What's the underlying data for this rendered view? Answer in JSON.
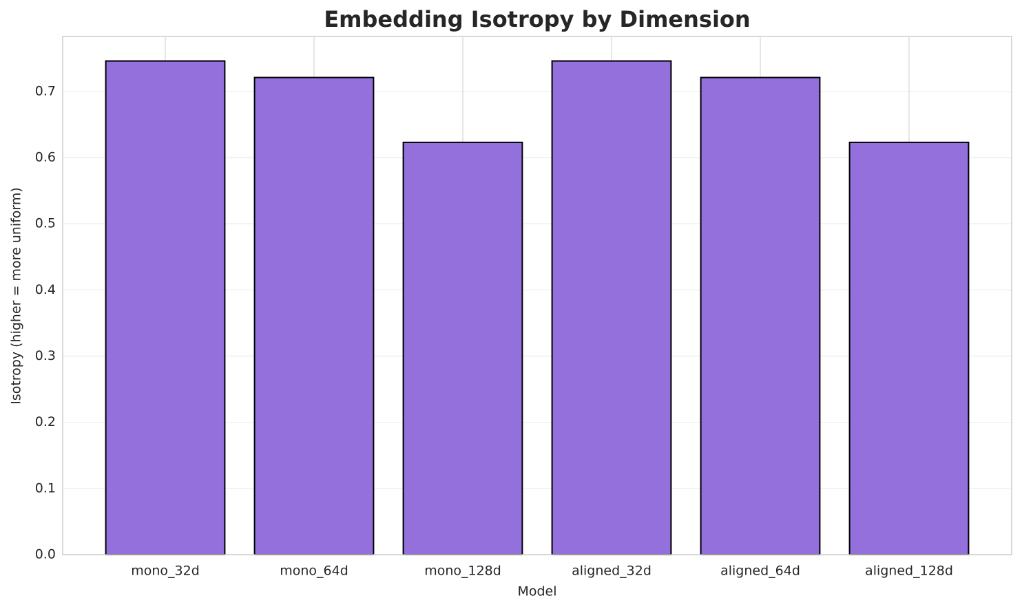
{
  "chart_data": {
    "type": "bar",
    "title": "Embedding Isotropy by Dimension",
    "xlabel": "Model",
    "ylabel": "Isotropy (higher = more uniform)",
    "categories": [
      "mono_32d",
      "mono_64d",
      "mono_128d",
      "aligned_32d",
      "aligned_64d",
      "aligned_128d"
    ],
    "values": [
      0.746,
      0.721,
      0.623,
      0.746,
      0.721,
      0.623
    ],
    "color": "#9370db",
    "edgecolor": "#000000",
    "ylim": [
      0,
      0.783
    ],
    "yticks": [
      {
        "value": 0,
        "label": "0.0"
      },
      0.1,
      0.2,
      0.3,
      0.4,
      0.5,
      0.6,
      0.7
    ],
    "grid": true
  }
}
